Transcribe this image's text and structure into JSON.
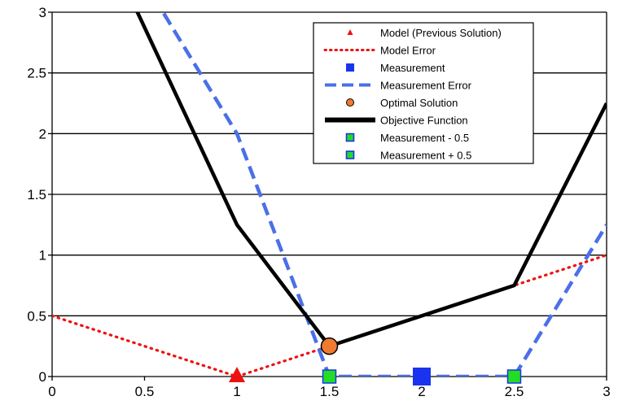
{
  "chart_data": {
    "type": "line",
    "title": "",
    "xlabel": "",
    "ylabel": "",
    "xlim": [
      0,
      3
    ],
    "ylim": [
      0,
      3
    ],
    "x_ticks": [
      "0",
      "0.5",
      "1",
      "1.5",
      "2",
      "2.5",
      "3"
    ],
    "y_ticks": [
      "0",
      "0.5",
      "1",
      "1.5",
      "2",
      "2.5",
      "3"
    ],
    "grid": "horizontal",
    "legend_position": "top-right",
    "series": [
      {
        "name": "Model (Previous Solution)",
        "style": "marker-triangle",
        "color": "#ee1111",
        "points": [
          [
            1,
            0
          ]
        ]
      },
      {
        "name": "Model Error",
        "style": "dotted",
        "color": "#ee1111",
        "points": [
          [
            0,
            0.5
          ],
          [
            1,
            0
          ],
          [
            1.5,
            0.25
          ],
          [
            2.5,
            0.75
          ],
          [
            3,
            1
          ]
        ]
      },
      {
        "name": "Measurement",
        "style": "marker-square",
        "color": "#1a33ee",
        "points": [
          [
            2,
            0
          ]
        ]
      },
      {
        "name": "Measurement Error",
        "style": "dashed",
        "color": "#4a6fe8",
        "points": [
          [
            0,
            4.5
          ],
          [
            0.5,
            3.25
          ],
          [
            1,
            2
          ],
          [
            1.5,
            0
          ],
          [
            2,
            0
          ],
          [
            2.5,
            0
          ],
          [
            3,
            1.25
          ]
        ]
      },
      {
        "name": "Optimal Solution",
        "style": "marker-circle",
        "color": "#f07a30",
        "points": [
          [
            1.5,
            0.25
          ]
        ]
      },
      {
        "name": "Objective Function",
        "style": "thick",
        "color": "#000000",
        "points": [
          [
            0,
            4.5
          ],
          [
            1,
            1.25
          ],
          [
            1.5,
            0.25
          ],
          [
            2.5,
            0.75
          ],
          [
            3,
            2.25
          ]
        ]
      },
      {
        "name": "Measurement - 0.5",
        "style": "marker-square-outlined",
        "color": "#22dd22",
        "points": [
          [
            1.5,
            0
          ]
        ]
      },
      {
        "name": "Measurement + 0.5",
        "style": "marker-square-outlined",
        "color": "#22dd22",
        "points": [
          [
            2.5,
            0
          ]
        ]
      }
    ]
  },
  "colors": {
    "grid": "#000000",
    "axis": "#000000",
    "marker_outline": "#1a33ee"
  }
}
